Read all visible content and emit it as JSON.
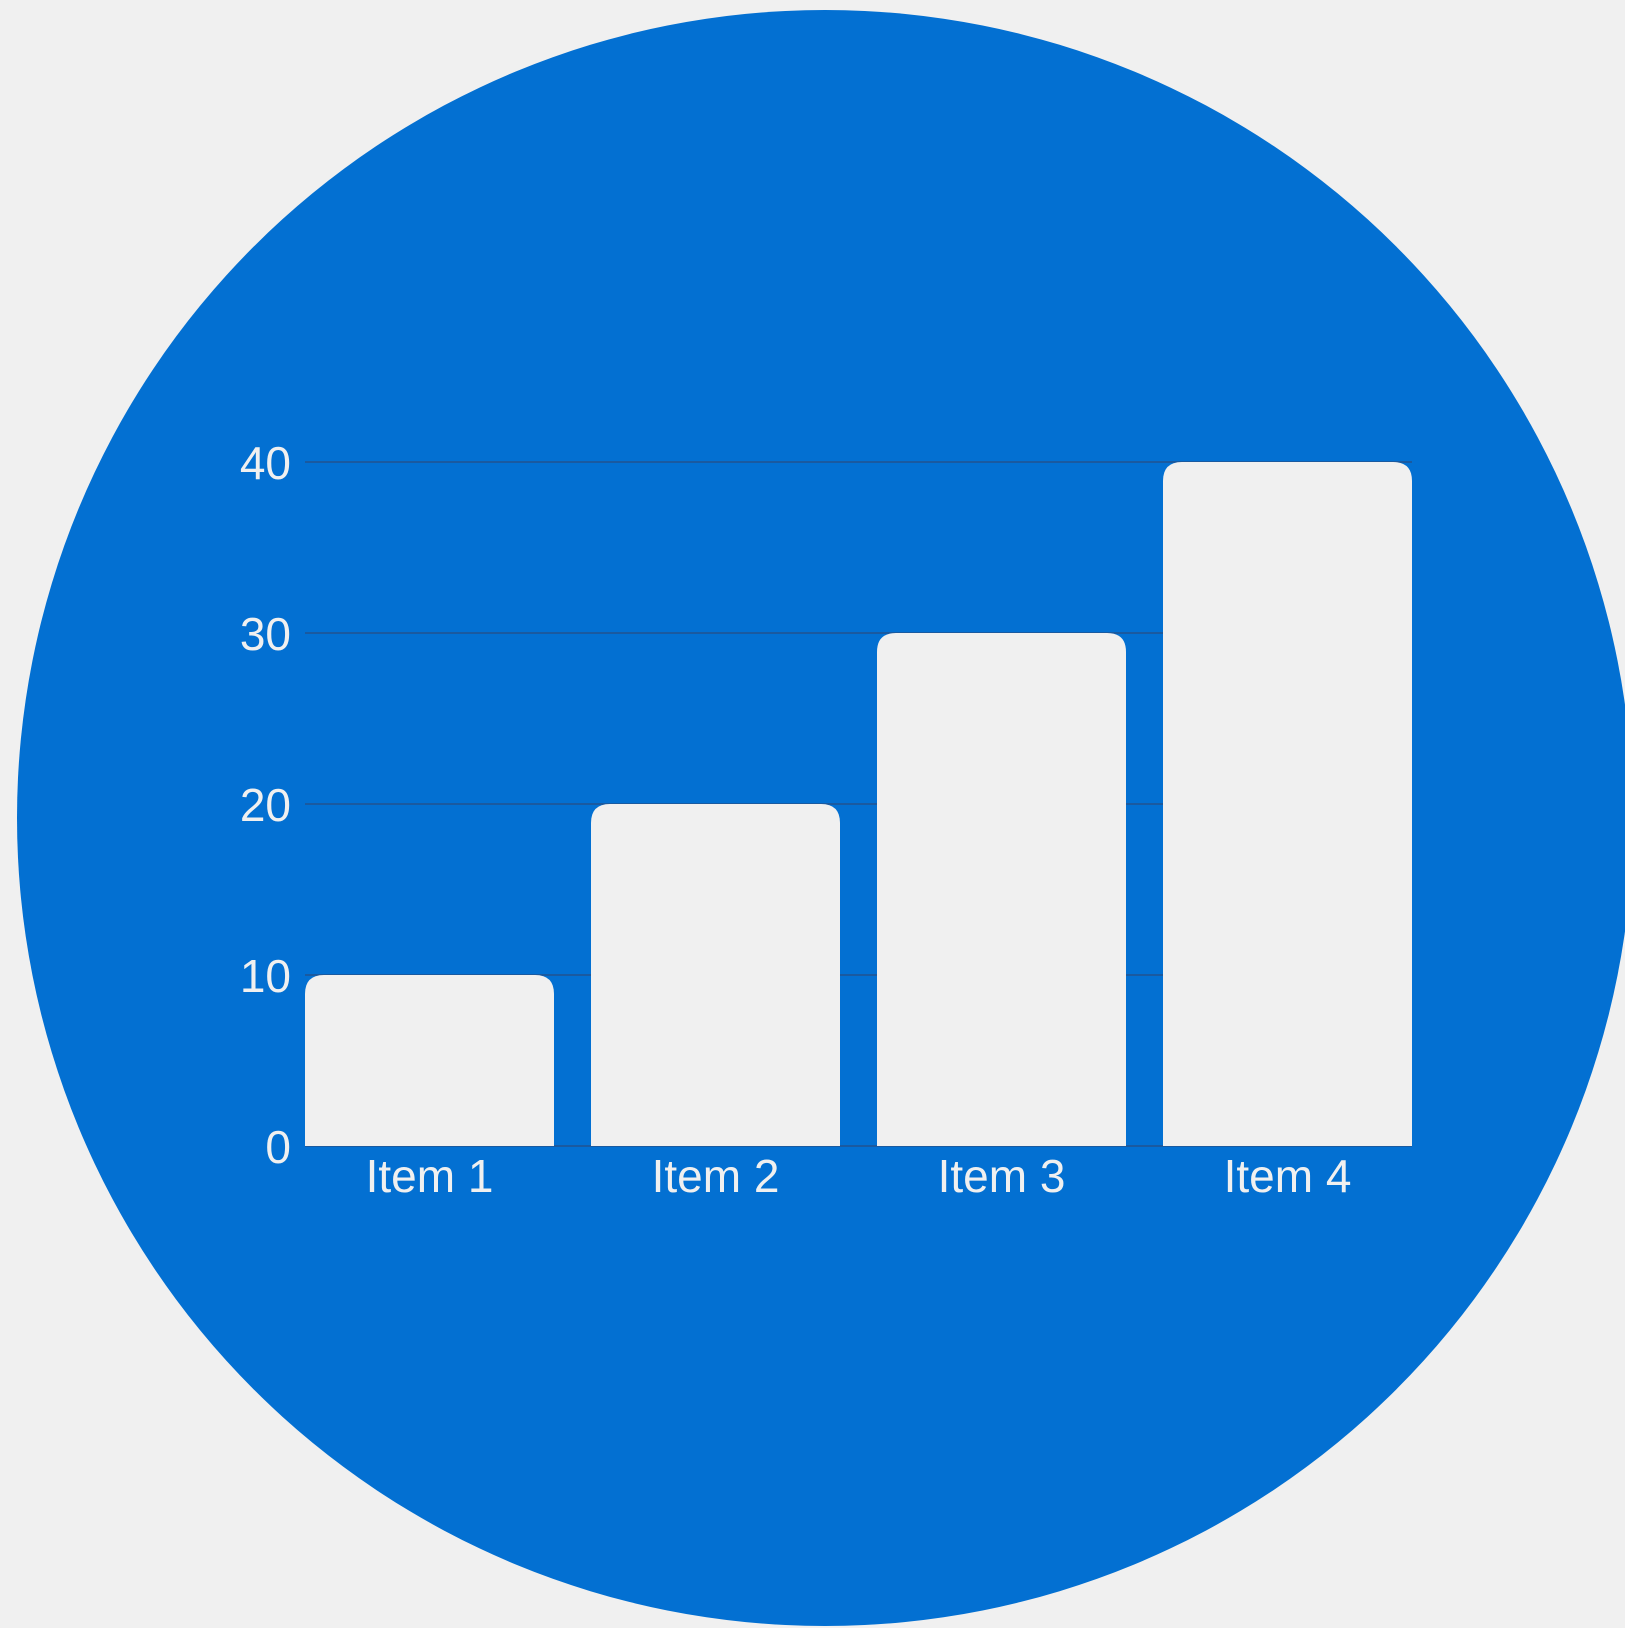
{
  "colors": {
    "page_background": "#f0f0f0",
    "circle": "#0370d2",
    "bars": "#f0f0f0",
    "labels": "#f0f0f0",
    "gridlines": "#1a5aa0"
  },
  "chart_data": {
    "type": "bar",
    "title": "",
    "xlabel": "",
    "ylabel": "",
    "categories": [
      "Item 1",
      "Item 2",
      "Item 3",
      "Item 4"
    ],
    "values": [
      10,
      20,
      30,
      40
    ],
    "ylim": [
      0,
      40
    ],
    "yticks": [
      "0",
      "10",
      "20",
      "30",
      "40"
    ],
    "grid": true,
    "legend": "none"
  }
}
